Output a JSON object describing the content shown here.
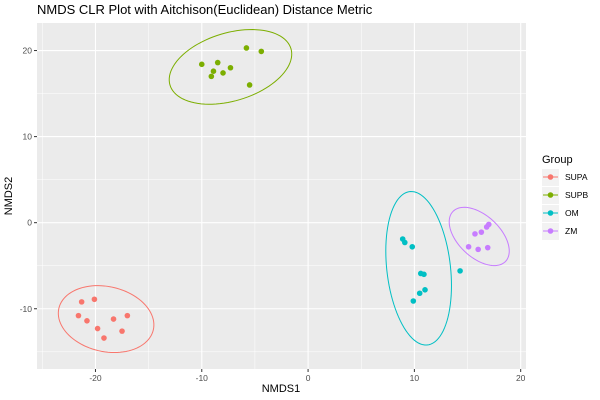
{
  "chart_data": {
    "type": "scatter",
    "title": "NMDS CLR Plot with Aitchison(Euclidean) Distance Metric",
    "xlabel": "NMDS1",
    "ylabel": "NMDS2",
    "xlim": [
      -25.5,
      20.5
    ],
    "ylim": [
      -17,
      23.2
    ],
    "xticks": [
      -20,
      -10,
      0,
      10,
      20
    ],
    "yticks": [
      -10,
      0,
      10,
      20
    ],
    "x_tick_labels": [
      "-20",
      "-10",
      "0",
      "10",
      "20"
    ],
    "y_tick_labels": [
      "-10",
      "0",
      "10",
      "20"
    ],
    "grid": true,
    "background": "#ebebeb",
    "legend": {
      "title": "Group",
      "position": "right"
    },
    "series": [
      {
        "name": "SUPA",
        "color": "#f8766d",
        "points": [
          [
            -21.3,
            -9.2
          ],
          [
            -20.1,
            -8.9
          ],
          [
            -21.6,
            -10.8
          ],
          [
            -20.8,
            -11.4
          ],
          [
            -19.8,
            -12.3
          ],
          [
            -19.2,
            -13.4
          ],
          [
            -18.3,
            -11.2
          ],
          [
            -17.5,
            -12.6
          ],
          [
            -17.0,
            -10.8
          ]
        ],
        "ellipse": {
          "cx": -19.0,
          "cy": -11.2,
          "rx": 4.65,
          "ry": 3.7,
          "angle_deg": -25
        }
      },
      {
        "name": "SUPB",
        "color": "#7cae00",
        "points": [
          [
            -10.0,
            18.4
          ],
          [
            -8.5,
            18.6
          ],
          [
            -8.9,
            17.6
          ],
          [
            -9.1,
            17.0
          ],
          [
            -8.0,
            17.4
          ],
          [
            -7.3,
            18.0
          ],
          [
            -5.8,
            20.3
          ],
          [
            -4.4,
            19.9
          ],
          [
            -5.5,
            16.0
          ]
        ],
        "ellipse": {
          "cx": -7.3,
          "cy": 18.1,
          "rx": 6.1,
          "ry": 3.85,
          "angle_deg": 25
        }
      },
      {
        "name": "OM",
        "color": "#00bfc4",
        "points": [
          [
            8.9,
            -1.9
          ],
          [
            9.1,
            -2.3
          ],
          [
            9.8,
            -2.8
          ],
          [
            10.6,
            -5.9
          ],
          [
            10.9,
            -6.0
          ],
          [
            14.3,
            -5.6
          ],
          [
            10.5,
            -8.2
          ],
          [
            11.0,
            -7.8
          ],
          [
            9.9,
            -9.1
          ]
        ],
        "ellipse": {
          "cx": 10.4,
          "cy": -5.3,
          "rx": 3.0,
          "ry": 8.95,
          "angle_deg": 5
        }
      },
      {
        "name": "ZM",
        "color": "#c77cff",
        "points": [
          [
            17.0,
            -0.2
          ],
          [
            16.8,
            -0.5
          ],
          [
            16.3,
            -1.1
          ],
          [
            15.7,
            -1.3
          ],
          [
            15.1,
            -2.8
          ],
          [
            16.9,
            -2.9
          ],
          [
            16.0,
            -3.1
          ]
        ],
        "ellipse": {
          "cx": 16.1,
          "cy": -1.6,
          "rx": 2.15,
          "ry": 3.85,
          "angle_deg": 35
        }
      }
    ]
  }
}
